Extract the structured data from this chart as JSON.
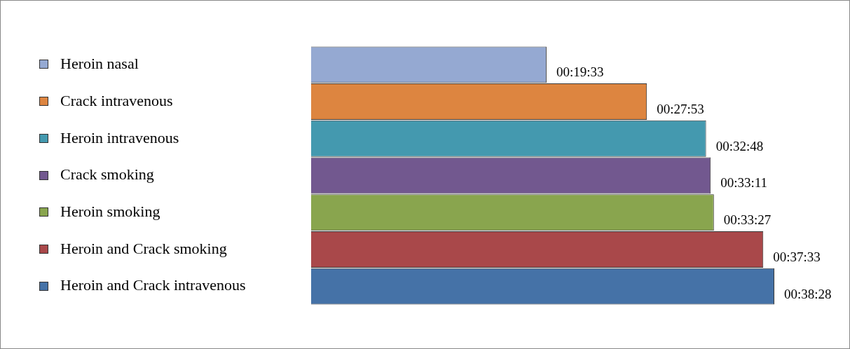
{
  "chart_data": {
    "type": "bar",
    "orientation": "horizontal",
    "categories": [
      "Heroin nasal",
      "Crack intravenous",
      "Heroin intravenous",
      "Crack smoking",
      "Heroin smoking",
      "Heroin and Crack smoking",
      "Heroin and Crack intravenous"
    ],
    "values": [
      1173,
      1673,
      1968,
      1991,
      2007,
      2253,
      2308
    ],
    "value_labels": [
      "00:19:33",
      "00:27:53",
      "00:32:48",
      "00:33:11",
      "00:33:27",
      "00:37:33",
      "00:38:28"
    ],
    "colors": [
      "#95a9d2",
      "#dd8540",
      "#4499af",
      "#72588f",
      "#89a54e",
      "#a9484a",
      "#4572a7"
    ],
    "tick_labels": "y",
    "grid": false,
    "legend": false
  }
}
